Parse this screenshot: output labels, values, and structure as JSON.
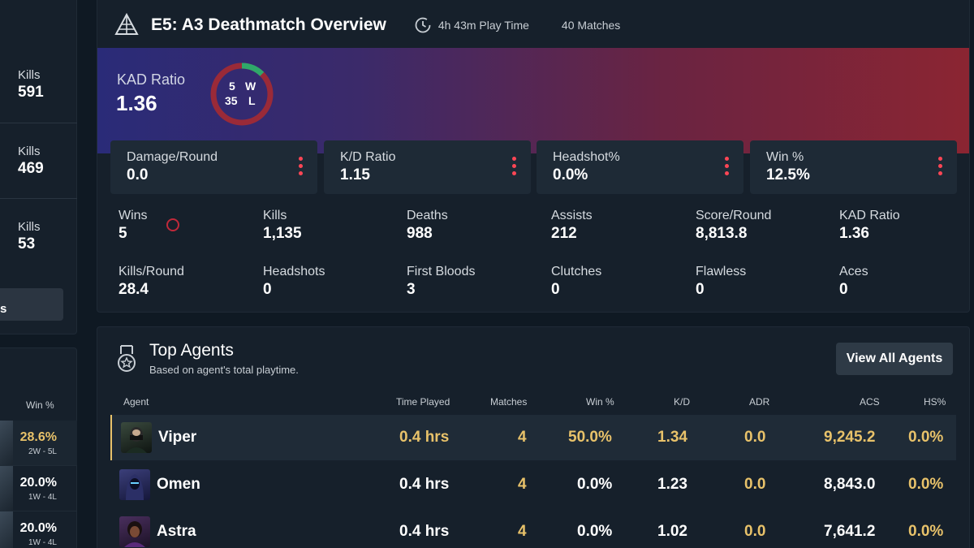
{
  "sidebar": {
    "stats": [
      {
        "label": "Kills",
        "value": "591"
      },
      {
        "label": "Kills",
        "value": "469"
      },
      {
        "label": "Kills",
        "value": "53"
      }
    ],
    "button_label": "s",
    "win_header": "Win %",
    "rows": [
      {
        "pct": "28.6%",
        "record": "2W - 5L",
        "color": "#e8c26a"
      },
      {
        "pct": "20.0%",
        "record": "1W - 4L",
        "color": "#ffffff"
      },
      {
        "pct": "20.0%",
        "record": "1W - 4L",
        "color": "#ffffff"
      }
    ]
  },
  "overview": {
    "title": "E5: A3 Deathmatch Overview",
    "play_time": "4h 43m Play Time",
    "matches": "40 Matches",
    "kad_label": "KAD Ratio",
    "kad_value": "1.36",
    "donut": {
      "wins": "5",
      "w_label": "W",
      "losses": "35",
      "l_label": "L",
      "win_fraction": 0.125,
      "win_color": "#2fa86a",
      "loss_color": "#9a2a38"
    },
    "cards": [
      {
        "label": "Damage/Round",
        "value": "0.0"
      },
      {
        "label": "K/D Ratio",
        "value": "1.15"
      },
      {
        "label": "Headshot%",
        "value": "0.0%"
      },
      {
        "label": "Win %",
        "value": "12.5%"
      }
    ],
    "grid": [
      {
        "label": "Wins",
        "value": "5"
      },
      {
        "label": "Kills",
        "value": "1,135"
      },
      {
        "label": "Deaths",
        "value": "988"
      },
      {
        "label": "Assists",
        "value": "212"
      },
      {
        "label": "Score/Round",
        "value": "8,813.8"
      },
      {
        "label": "KAD Ratio",
        "value": "1.36"
      },
      {
        "label": "Kills/Round",
        "value": "28.4"
      },
      {
        "label": "Headshots",
        "value": "0"
      },
      {
        "label": "First Bloods",
        "value": "3"
      },
      {
        "label": "Clutches",
        "value": "0"
      },
      {
        "label": "Flawless",
        "value": "0"
      },
      {
        "label": "Aces",
        "value": "0"
      }
    ]
  },
  "agents": {
    "title": "Top Agents",
    "subtitle": "Based on agent's total playtime.",
    "view_all_label": "View All Agents",
    "columns": [
      "Agent",
      "Time Played",
      "Matches",
      "Win %",
      "K/D",
      "ADR",
      "ACS",
      "HS%"
    ],
    "rows": [
      {
        "name": "Viper",
        "time": "0.4 hrs",
        "matches": "4",
        "win": "50.0%",
        "kd": "1.34",
        "adr": "0.0",
        "acs": "9,245.2",
        "hs": "0.0%"
      },
      {
        "name": "Omen",
        "time": "0.4 hrs",
        "matches": "4",
        "win": "0.0%",
        "kd": "1.23",
        "adr": "0.0",
        "acs": "8,843.0",
        "hs": "0.0%"
      },
      {
        "name": "Astra",
        "time": "0.4 hrs",
        "matches": "4",
        "win": "0.0%",
        "kd": "1.02",
        "adr": "0.0",
        "acs": "7,641.2",
        "hs": "0.0%"
      }
    ]
  },
  "colors": {
    "accent_gold": "#e8c26a",
    "accent_red": "#ff4655",
    "bg": "#0f1923",
    "card": "#16202b"
  },
  "icons": {
    "mode": "deathmatch-pyramid-icon",
    "clock": "clock-icon",
    "agents": "medal-icon"
  }
}
